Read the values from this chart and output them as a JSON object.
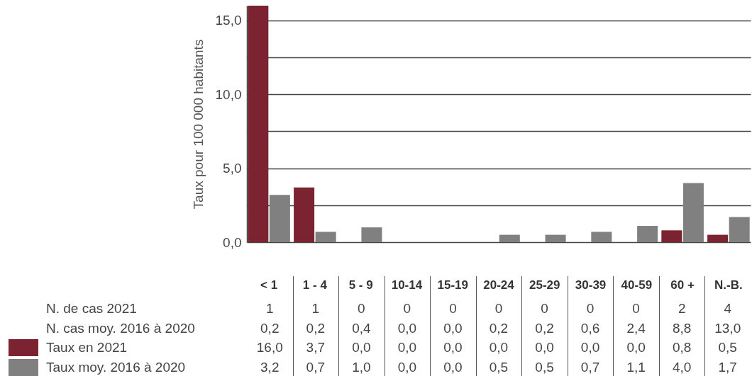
{
  "chart_data": [
    {
      "type": "bar",
      "ylabel": "Taux pour 100 000 habitants",
      "categories": [
        "< 1",
        "1 - 4",
        "5 - 9",
        "10-14",
        "15-19",
        "20-24",
        "25-29",
        "30-39",
        "40-59",
        "60 +",
        "N.-B."
      ],
      "series": [
        {
          "name": "Taux en 2021",
          "color": "#7b2331",
          "values": [
            16.0,
            3.7,
            0,
            0,
            0,
            0,
            0,
            0,
            0,
            0.8,
            0.5
          ],
          "value_labels": [
            "16,0",
            "3,7",
            "0,0",
            "0,0",
            "0,0",
            "0,0",
            "0,0",
            "0,0",
            "0,0",
            "0,8",
            "0,5"
          ]
        },
        {
          "name": "Taux moy. 2016 à 2020",
          "color": "#808080",
          "values": [
            3.2,
            0.7,
            1.0,
            0,
            0,
            0.5,
            0.5,
            0.7,
            1.1,
            4.0,
            1.7
          ],
          "value_labels": [
            "3,2",
            "0,7",
            "1,0",
            "0,0",
            "0,0",
            "0,5",
            "0,5",
            "0,7",
            "1,1",
            "4,0",
            "1,7"
          ]
        }
      ],
      "ylim": [
        0,
        16
      ],
      "yticks": [
        {
          "value": 0,
          "label": "0,0"
        },
        {
          "value": 2.5,
          "label": null
        },
        {
          "value": 5,
          "label": "5,0"
        },
        {
          "value": 7.5,
          "label": null
        },
        {
          "value": 10,
          "label": "10,0"
        },
        {
          "value": 12.5,
          "label": null
        },
        {
          "value": 15,
          "label": "15,0"
        }
      ],
      "grid": "y",
      "legend": "bottom left"
    },
    {
      "type": "other",
      "annotations": [
        "N. de cas 2021",
        "1",
        "1",
        "0",
        "0",
        "0",
        "0",
        "0",
        "0",
        "0",
        "2",
        "4",
        "N. cas moy. 2016 à 2020",
        "0,2",
        "0,2",
        "0,4",
        "0,0",
        "0,0",
        "0,2",
        "0,2",
        "0,6",
        "2,4",
        "8,8",
        "13,0"
      ]
    }
  ]
}
